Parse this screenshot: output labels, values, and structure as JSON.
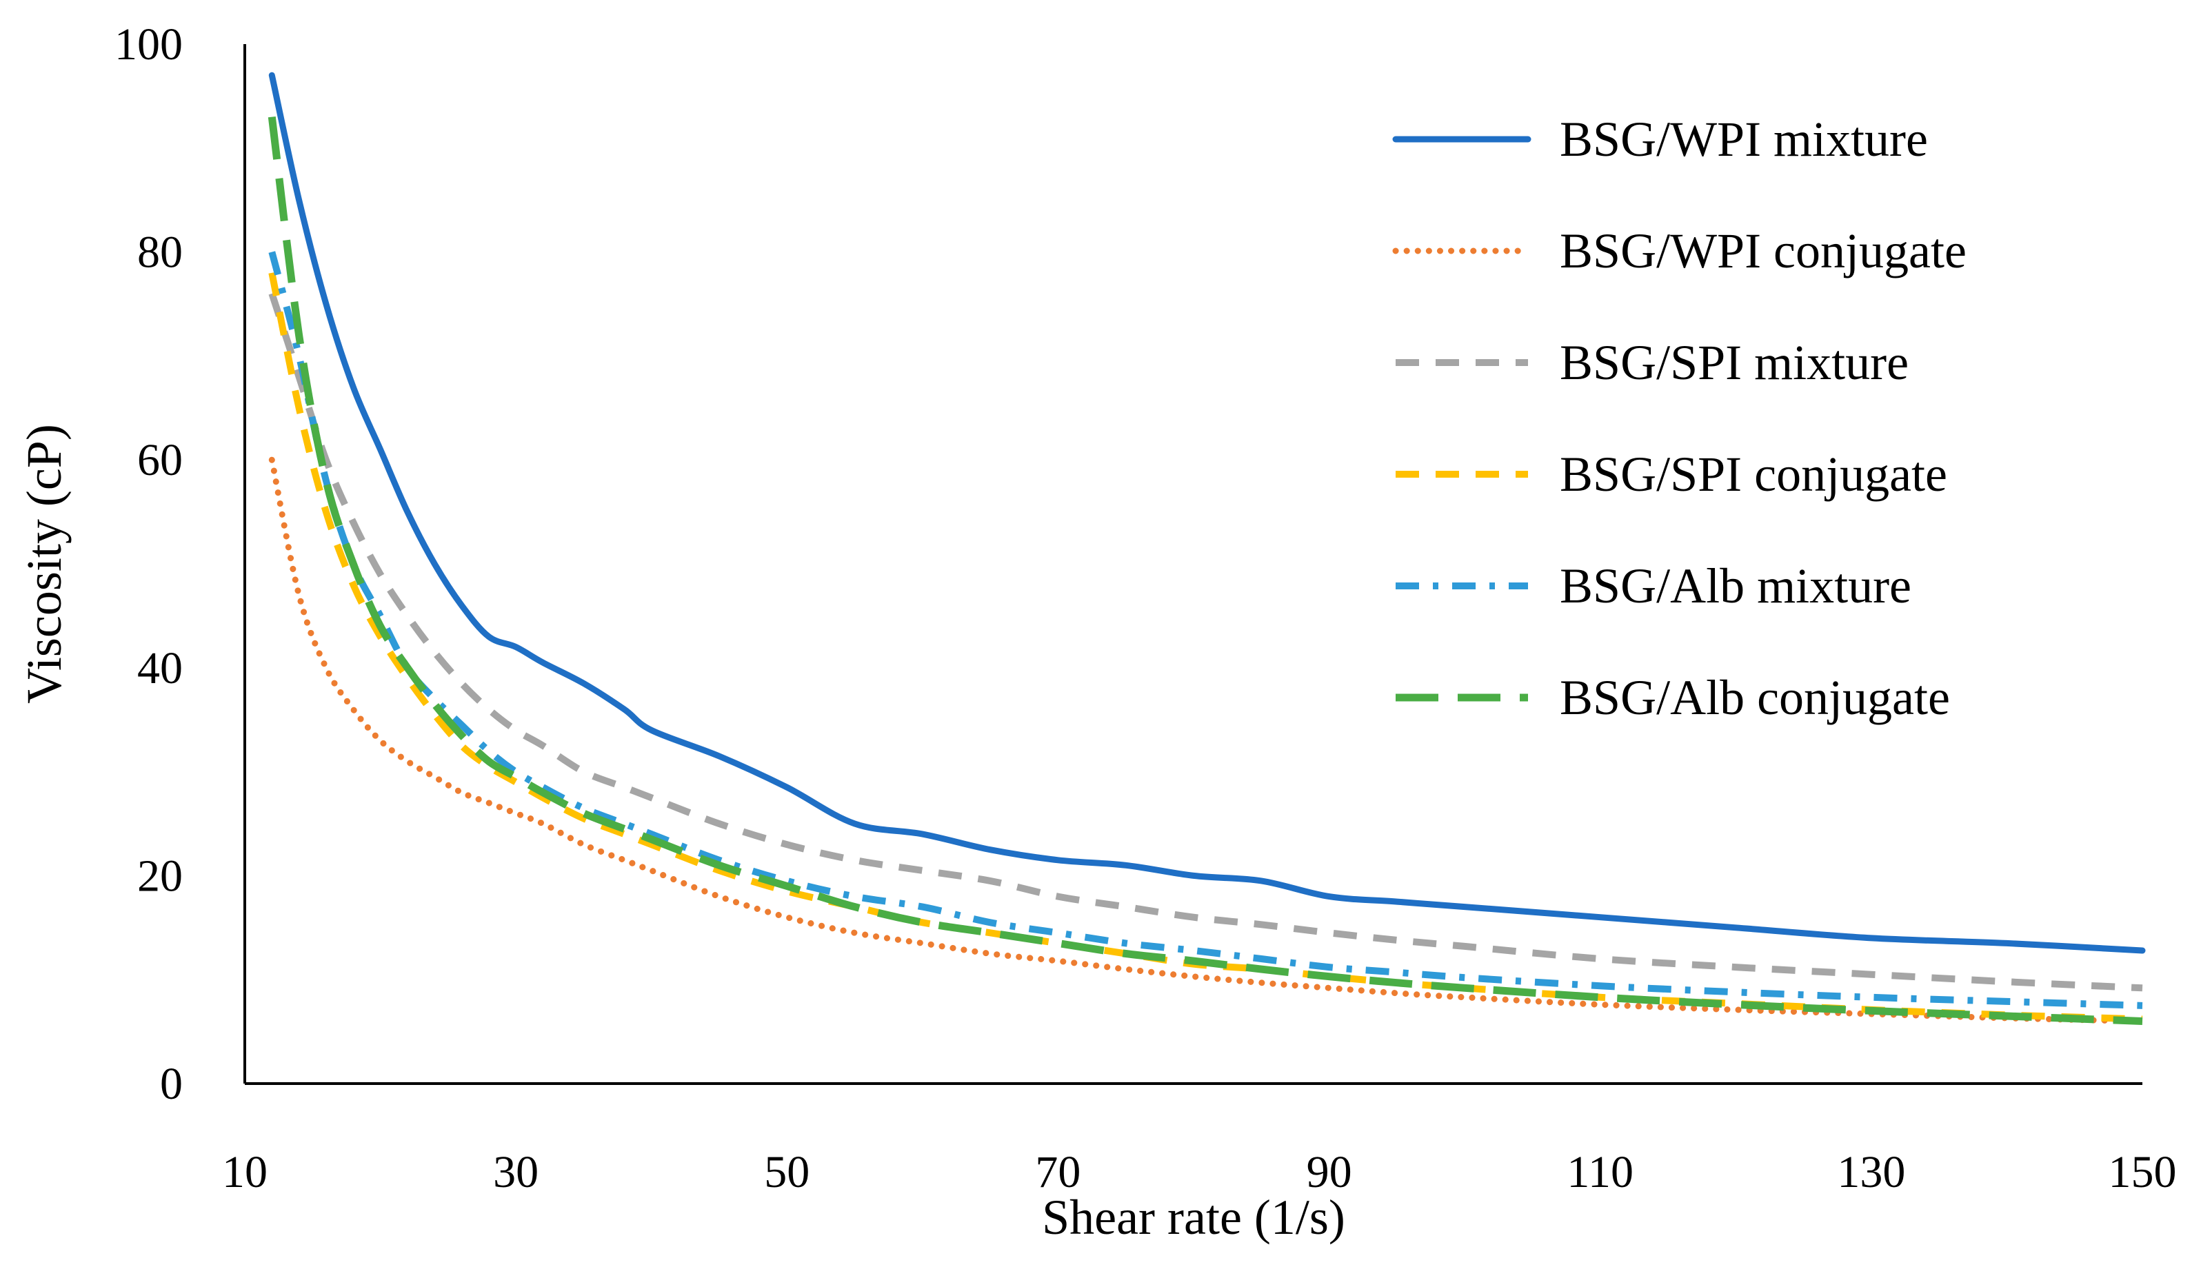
{
  "chart_data": {
    "type": "line",
    "xlabel": "Shear rate (1/s)",
    "ylabel": "Viscosity (cP)",
    "xlim": [
      10,
      150
    ],
    "ylim": [
      0,
      100
    ],
    "x_ticks": [
      "10",
      "30",
      "50",
      "70",
      "90",
      "110",
      "130",
      "150"
    ],
    "y_ticks": [
      "0",
      "20",
      "40",
      "60",
      "80",
      "100"
    ],
    "grid": false,
    "legend_position": "top-right",
    "x": [
      12,
      14,
      16,
      18,
      20,
      22,
      24,
      26,
      28,
      30,
      32,
      35,
      38,
      40,
      45,
      50,
      55,
      60,
      65,
      70,
      75,
      80,
      85,
      90,
      95,
      100,
      110,
      120,
      130,
      140,
      150
    ],
    "series": [
      {
        "name": "BSG/WPI mixture",
        "color": "#1f6fc5",
        "style": "solid",
        "values": [
          97,
          85,
          75,
          67,
          61,
          55,
          50,
          46,
          43,
          42,
          40.5,
          38.5,
          36,
          34,
          31.5,
          28.5,
          25,
          24,
          22.5,
          21.5,
          21,
          20,
          19.5,
          18,
          17.5,
          17,
          16,
          15,
          14,
          13.5,
          12.8
        ]
      },
      {
        "name": "BSG/WPI conjugate",
        "color": "#ed7d31",
        "style": "dotted",
        "values": [
          60,
          47,
          40,
          36,
          33,
          31,
          29.5,
          28,
          27,
          26,
          25,
          23,
          21.5,
          20.5,
          18,
          16,
          14.5,
          13.5,
          12.5,
          11.8,
          11,
          10.3,
          9.7,
          9.2,
          8.7,
          8.3,
          7.6,
          7.1,
          6.7,
          6.3,
          6
        ]
      },
      {
        "name": "BSG/SPI mixture",
        "color": "#a5a5a5",
        "style": "dashed",
        "values": [
          76,
          68,
          60,
          54,
          49,
          45,
          41.5,
          38.5,
          36,
          34,
          32.5,
          30,
          28.5,
          27.5,
          25,
          23,
          21.5,
          20.5,
          19.5,
          18,
          17,
          16,
          15.3,
          14.5,
          13.8,
          13.2,
          12,
          11.2,
          10.5,
          9.8,
          9.2
        ]
      },
      {
        "name": "BSG/SPI conjugate",
        "color": "#ffc000",
        "style": "dashed",
        "values": [
          78,
          65,
          55,
          48,
          43,
          39,
          35.5,
          32.5,
          30.5,
          29,
          27.5,
          25.5,
          24,
          23,
          20.5,
          18.5,
          17,
          15.5,
          14.5,
          13.5,
          12.5,
          11.5,
          11,
          10.3,
          9.7,
          9.2,
          8.3,
          7.7,
          7.1,
          6.6,
          6.2
        ]
      },
      {
        "name": "BSG/Alb mixture",
        "color": "#2e9ad8",
        "style": "dash-dot",
        "values": [
          80,
          70,
          58,
          50,
          45,
          40,
          37,
          34.5,
          32,
          30,
          28.5,
          26.5,
          25,
          24,
          21.5,
          19.5,
          18,
          17,
          15.5,
          14.5,
          13.5,
          12.8,
          12,
          11.2,
          10.7,
          10.2,
          9.4,
          8.8,
          8.3,
          7.9,
          7.5
        ]
      },
      {
        "name": "BSG/Alb conjugate",
        "color": "#4aad45",
        "style": "long-dash",
        "values": [
          93,
          72,
          58,
          50,
          44,
          40,
          36.5,
          33.5,
          31,
          29.5,
          28,
          26,
          24.5,
          23.5,
          21,
          19,
          17,
          15.5,
          14.5,
          13.5,
          12.5,
          11.8,
          11,
          10.3,
          9.7,
          9.2,
          8.3,
          7.6,
          7,
          6.5,
          6
        ]
      }
    ]
  }
}
